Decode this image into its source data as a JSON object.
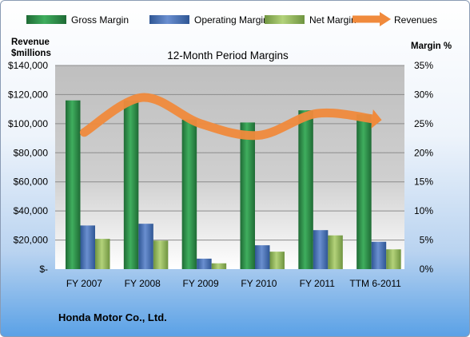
{
  "chart_data": {
    "type": "bar",
    "title": "12-Month Period Margins",
    "company": "Honda Motor Co., Ltd.",
    "categories": [
      "FY 2007",
      "FY 2008",
      "FY 2009",
      "FY 2010",
      "FY 2011",
      "TTM 6-2011"
    ],
    "y_left": {
      "title_line1": "Revenue",
      "title_line2": "$millions",
      "ylim": [
        0,
        140000
      ],
      "ticks": [
        "$-",
        "$20,000",
        "$40,000",
        "$60,000",
        "$80,000",
        "$100,000",
        "$120,000",
        "$140,000"
      ]
    },
    "y_right": {
      "title": "Margin %",
      "ylim": [
        0,
        35
      ],
      "ticks": [
        "0%",
        "5%",
        "10%",
        "15%",
        "20%",
        "25%",
        "30%",
        "35%"
      ]
    },
    "series": [
      {
        "name": "Gross Margin",
        "axis": "right",
        "color": "#2e8b47",
        "values": [
          29.0,
          29.0,
          25.7,
          25.2,
          27.3,
          26.6
        ]
      },
      {
        "name": "Operating Margin",
        "axis": "right",
        "color": "#4a72b8",
        "values": [
          7.5,
          7.8,
          1.8,
          4.1,
          6.7,
          4.7
        ]
      },
      {
        "name": "Net Margin",
        "axis": "right",
        "color": "#8fb55a",
        "values": [
          5.2,
          4.9,
          1.0,
          3.0,
          5.8,
          3.4
        ]
      },
      {
        "name": "Revenues",
        "axis": "left",
        "type": "line",
        "color": "#f08a3c",
        "values": [
          94000,
          118000,
          100000,
          92000,
          107000,
          103000
        ]
      }
    ],
    "legend_position": "top",
    "grid": true
  }
}
